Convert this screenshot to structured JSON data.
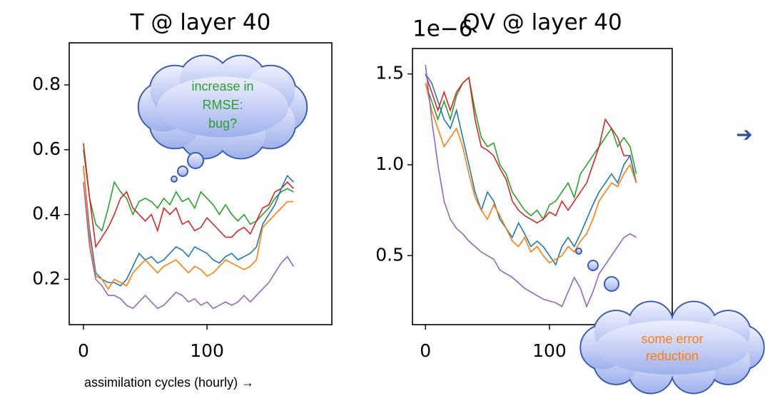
{
  "chart_data": [
    {
      "type": "line",
      "title": "T @ layer 40",
      "xlabel": "assimilation cycles (hourly) →",
      "x": [
        0,
        5,
        10,
        15,
        20,
        25,
        30,
        35,
        40,
        45,
        50,
        55,
        60,
        65,
        70,
        75,
        80,
        85,
        90,
        95,
        100,
        105,
        110,
        115,
        120,
        125,
        130,
        135,
        140,
        145,
        150,
        155,
        160,
        165,
        170
      ],
      "series": [
        {
          "color": "#2ca02c",
          "values": [
            0.6,
            0.45,
            0.37,
            0.35,
            0.42,
            0.5,
            0.47,
            0.45,
            0.4,
            0.44,
            0.45,
            0.44,
            0.42,
            0.45,
            0.43,
            0.47,
            0.44,
            0.45,
            0.42,
            0.47,
            0.45,
            0.43,
            0.4,
            0.43,
            0.4,
            0.38,
            0.4,
            0.37,
            0.38,
            0.4,
            0.42,
            0.45,
            0.47,
            0.48,
            0.47
          ]
        },
        {
          "color": "#d62728",
          "values": [
            0.62,
            0.45,
            0.3,
            0.33,
            0.36,
            0.4,
            0.45,
            0.47,
            0.42,
            0.4,
            0.38,
            0.4,
            0.35,
            0.42,
            0.4,
            0.42,
            0.37,
            0.38,
            0.35,
            0.36,
            0.39,
            0.37,
            0.35,
            0.33,
            0.33,
            0.35,
            0.36,
            0.34,
            0.38,
            0.42,
            0.43,
            0.47,
            0.48,
            0.5,
            0.48
          ]
        },
        {
          "color": "#1f77b4",
          "values": [
            0.55,
            0.35,
            0.22,
            0.2,
            0.19,
            0.19,
            0.18,
            0.2,
            0.24,
            0.28,
            0.26,
            0.27,
            0.25,
            0.26,
            0.28,
            0.3,
            0.29,
            0.27,
            0.3,
            0.29,
            0.28,
            0.26,
            0.25,
            0.27,
            0.28,
            0.26,
            0.27,
            0.28,
            0.3,
            0.37,
            0.4,
            0.43,
            0.48,
            0.52,
            0.5
          ]
        },
        {
          "color": "#ff7f0e",
          "values": [
            0.55,
            0.33,
            0.21,
            0.2,
            0.17,
            0.2,
            0.19,
            0.18,
            0.22,
            0.24,
            0.26,
            0.24,
            0.22,
            0.24,
            0.25,
            0.26,
            0.24,
            0.22,
            0.24,
            0.23,
            0.21,
            0.22,
            0.24,
            0.26,
            0.25,
            0.24,
            0.23,
            0.24,
            0.26,
            0.36,
            0.38,
            0.4,
            0.42,
            0.44,
            0.44
          ]
        },
        {
          "color": "#9467bd",
          "values": [
            0.5,
            0.3,
            0.2,
            0.18,
            0.15,
            0.15,
            0.14,
            0.12,
            0.11,
            0.13,
            0.15,
            0.13,
            0.11,
            0.12,
            0.14,
            0.16,
            0.15,
            0.13,
            0.14,
            0.12,
            0.13,
            0.11,
            0.12,
            0.13,
            0.12,
            0.13,
            0.15,
            0.13,
            0.15,
            0.17,
            0.19,
            0.22,
            0.25,
            0.27,
            0.24
          ]
        }
      ],
      "xlim": [
        -11.5,
        201
      ],
      "ylim": [
        0.06,
        0.93
      ],
      "xticks": [
        0,
        100
      ],
      "yticks": [
        0.2,
        0.4,
        0.6,
        0.8
      ],
      "callout": [
        "increase in",
        "RMSE:",
        "bug?"
      ]
    },
    {
      "type": "line",
      "title": "QV @ layer 40",
      "multiplier": "1e−6",
      "x": [
        0,
        5,
        10,
        15,
        20,
        25,
        30,
        35,
        40,
        45,
        50,
        55,
        60,
        65,
        70,
        75,
        80,
        85,
        90,
        95,
        100,
        105,
        110,
        115,
        120,
        125,
        130,
        135,
        140,
        145,
        150,
        155,
        160,
        165,
        170
      ],
      "series": [
        {
          "color": "#2ca02c",
          "values": [
            1.45,
            1.35,
            1.25,
            1.35,
            1.25,
            1.38,
            1.45,
            1.48,
            1.3,
            1.15,
            1.1,
            1.12,
            1.0,
            0.95,
            0.85,
            0.8,
            0.75,
            0.72,
            0.75,
            0.7,
            0.78,
            0.8,
            0.85,
            0.9,
            0.82,
            0.95,
            1.0,
            1.05,
            1.1,
            1.15,
            1.2,
            1.1,
            1.15,
            1.1,
            0.95
          ]
        },
        {
          "color": "#d62728",
          "values": [
            1.5,
            1.4,
            1.3,
            1.4,
            1.3,
            1.4,
            1.45,
            1.48,
            1.25,
            1.1,
            1.08,
            1.05,
            0.98,
            0.92,
            0.8,
            0.75,
            0.72,
            0.7,
            0.68,
            0.7,
            0.74,
            0.72,
            0.8,
            0.75,
            0.8,
            0.85,
            0.9,
            1.0,
            1.1,
            1.25,
            1.2,
            1.15,
            1.05,
            1.05,
            0.9
          ]
        },
        {
          "color": "#1f77b4",
          "values": [
            1.5,
            1.45,
            1.35,
            1.25,
            1.2,
            1.3,
            1.15,
            1.0,
            0.85,
            0.75,
            0.85,
            0.8,
            0.7,
            0.65,
            0.6,
            0.68,
            0.62,
            0.55,
            0.58,
            0.55,
            0.5,
            0.45,
            0.55,
            0.6,
            0.55,
            0.62,
            0.7,
            0.78,
            0.85,
            0.9,
            0.95,
            0.9,
            1.0,
            1.05,
            0.9
          ]
        },
        {
          "color": "#ff7f0e",
          "values": [
            1.45,
            1.3,
            1.2,
            1.1,
            1.15,
            1.2,
            1.1,
            0.95,
            0.82,
            0.75,
            0.7,
            0.78,
            0.72,
            0.65,
            0.58,
            0.55,
            0.6,
            0.52,
            0.55,
            0.5,
            0.46,
            0.48,
            0.5,
            0.55,
            0.52,
            0.58,
            0.62,
            0.7,
            0.8,
            0.85,
            0.9,
            0.88,
            0.95,
            1.0,
            0.9
          ]
        },
        {
          "color": "#9467bd",
          "values": [
            1.55,
            1.25,
            1.0,
            0.8,
            0.7,
            0.65,
            0.62,
            0.58,
            0.55,
            0.52,
            0.5,
            0.48,
            0.42,
            0.4,
            0.38,
            0.35,
            0.32,
            0.3,
            0.28,
            0.26,
            0.25,
            0.24,
            0.22,
            0.3,
            0.38,
            0.32,
            0.22,
            0.3,
            0.4,
            0.45,
            0.5,
            0.55,
            0.6,
            0.62,
            0.6
          ]
        }
      ],
      "xlim": [
        -10.5,
        199
      ],
      "ylim": [
        0.12,
        1.64
      ],
      "xticks": [
        0,
        100
      ],
      "yticks": [
        0.5,
        {
          "value": 1,
          "label": "1.0"
        },
        1.5
      ],
      "callout": [
        "some error",
        "reduction"
      ],
      "arrow": "➔"
    }
  ]
}
